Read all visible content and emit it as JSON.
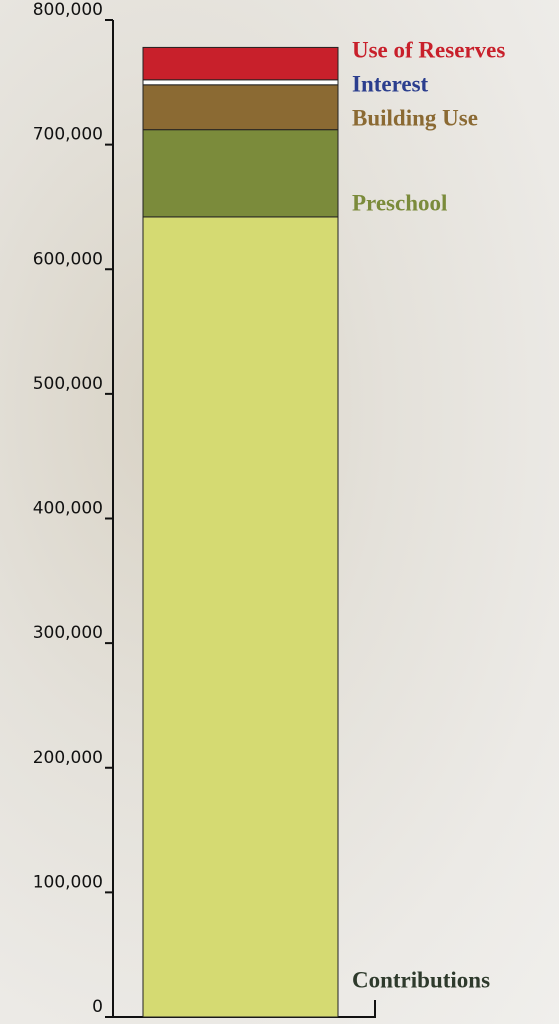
{
  "chart_data": {
    "type": "stacked-bar",
    "series": [
      {
        "name": "Contributions",
        "color": "#d5da72",
        "label_color": "#2e3a2c",
        "values": [
          642000
        ]
      },
      {
        "name": "Preschool",
        "color": "#7b8b3b",
        "label_color": "#7b8b3b",
        "values": [
          70000
        ]
      },
      {
        "name": "Building Use",
        "color": "#8b6a33",
        "label_color": "#8b6a33",
        "values": [
          36000
        ]
      },
      {
        "name": "Interest",
        "color": "#ffffff",
        "label_color": "#2b3e8e",
        "values": [
          4000
        ]
      },
      {
        "name": "Use of Reserves",
        "color": "#c8202b",
        "label_color": "#c8202b",
        "values": [
          26000
        ]
      }
    ],
    "ylim": [
      0,
      800000
    ],
    "yticks": [
      0,
      {
        "value": 100000,
        "label": "100,000"
      },
      {
        "value": 200000,
        "label": "200,000"
      },
      {
        "value": 300000,
        "label": "300,000"
      },
      {
        "value": 400000,
        "label": "400,000"
      },
      {
        "value": 500000,
        "label": "500,000"
      },
      {
        "value": 600000,
        "label": "600,000"
      },
      {
        "value": 700000,
        "label": "700,000"
      },
      {
        "value": 800000,
        "label": "800,000"
      }
    ]
  }
}
